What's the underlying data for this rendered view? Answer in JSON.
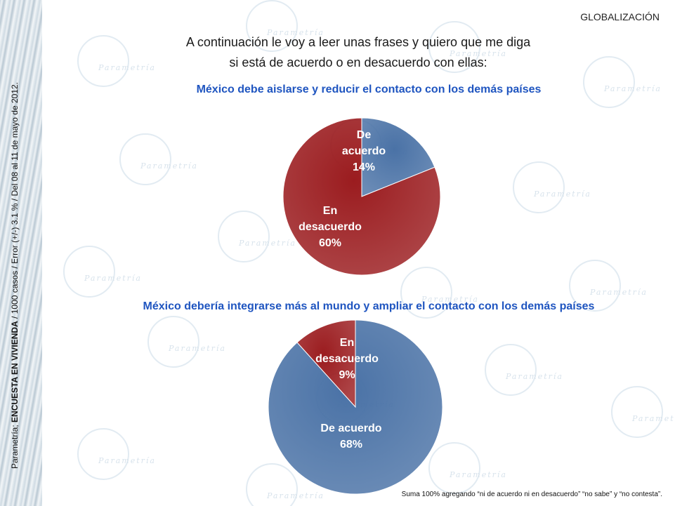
{
  "header": {
    "section": "GLOBALIZACIÓN"
  },
  "side_note": {
    "prefix": "Parametría; ",
    "bold": "ENCUESTA EN VIVIENDA",
    "rest": " / 1000 casos / Error (+/-) 3.1 % / Del 08 al 11 de mayo de 2012."
  },
  "watermark": {
    "brand": "Parametría"
  },
  "intro": {
    "line1": "A continuación le voy a leer unas frases y quiero que me diga",
    "line2": "si está de acuerdo o en desacuerdo con ellas:"
  },
  "chart_data": [
    {
      "type": "pie",
      "title": "México debe aislarse y reducir el contacto con los demás países",
      "slices": [
        {
          "label_lines": [
            "De",
            "acuerdo"
          ],
          "value": 14,
          "value_text": "14%",
          "color": "#4a72a6"
        },
        {
          "label_lines": [
            "En",
            "desacuerdo"
          ],
          "value": 60,
          "value_text": "60%",
          "color": "#9b1c1f"
        }
      ]
    },
    {
      "type": "pie",
      "title": "México debería integrarse más al mundo y ampliar el contacto con los demás países",
      "slices": [
        {
          "label_lines": [
            "En",
            "desacuerdo"
          ],
          "value": 9,
          "value_text": "9%",
          "color": "#9b1c1f"
        },
        {
          "label_lines": [
            "De acuerdo"
          ],
          "value": 68,
          "value_text": "68%",
          "color": "#4a72a6"
        }
      ]
    }
  ],
  "footnote": "Suma 100%  agregando  “ni de acuerdo ni en desacuerdo” “no sabe” y “no contesta”."
}
